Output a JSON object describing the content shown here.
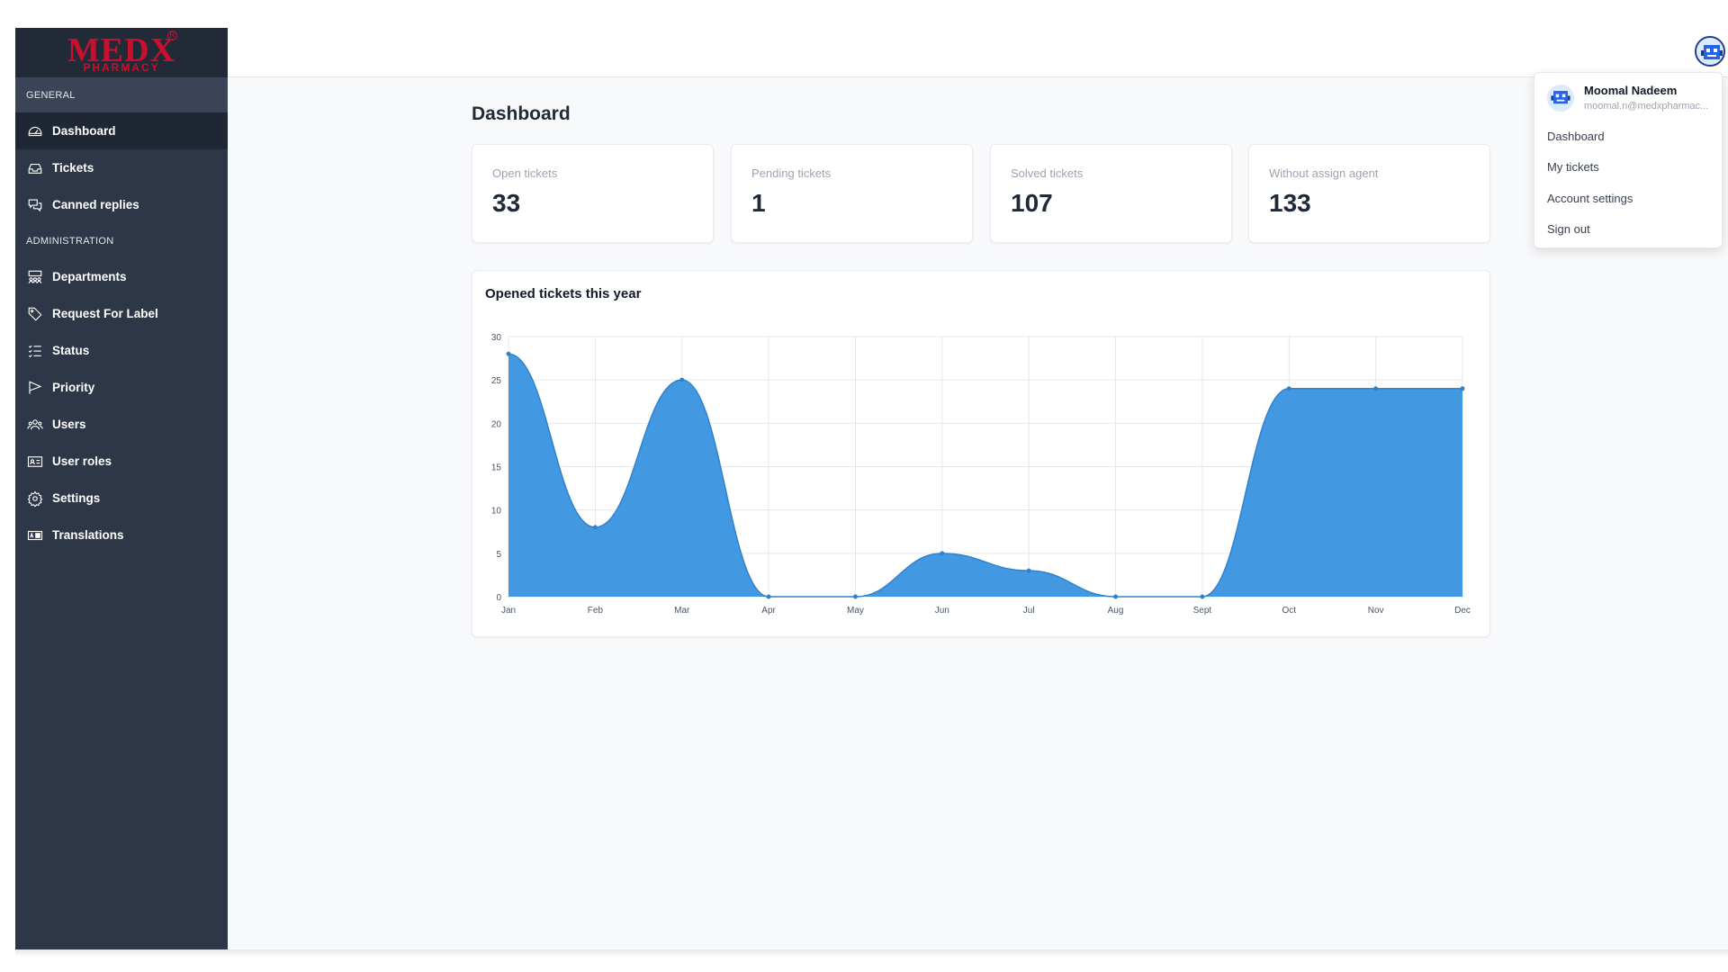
{
  "brand": {
    "logo_main": "MEDX",
    "logo_sub": "PHARMACY",
    "logo_reg": "R",
    "accent": "#c8102e"
  },
  "sidebar": {
    "sections": [
      {
        "title": "GENERAL",
        "items": [
          {
            "label": "Dashboard",
            "icon": "dashboard-gauge-icon",
            "active": true
          },
          {
            "label": "Tickets",
            "icon": "inbox-icon"
          },
          {
            "label": "Canned replies",
            "icon": "chat-bubbles-icon"
          }
        ]
      },
      {
        "title": "ADMINISTRATION",
        "items": [
          {
            "label": "Departments",
            "icon": "departments-icon"
          },
          {
            "label": "Request For Label",
            "icon": "tag-icon"
          },
          {
            "label": "Status",
            "icon": "list-check-icon"
          },
          {
            "label": "Priority",
            "icon": "flag-icon"
          },
          {
            "label": "Users",
            "icon": "users-icon"
          },
          {
            "label": "User roles",
            "icon": "id-card-icon"
          },
          {
            "label": "Settings",
            "icon": "gear-icon"
          },
          {
            "label": "Translations",
            "icon": "translate-icon"
          }
        ]
      }
    ]
  },
  "page": {
    "title": "Dashboard"
  },
  "stats": [
    {
      "label": "Open tickets",
      "value": "33"
    },
    {
      "label": "Pending tickets",
      "value": "1"
    },
    {
      "label": "Solved tickets",
      "value": "107"
    },
    {
      "label": "Without assign agent",
      "value": "133"
    }
  ],
  "user_menu": {
    "name": "Moomal Nadeem",
    "email": "moomal.n@medxpharmac...",
    "items": [
      "Dashboard",
      "My tickets",
      "Account settings",
      "Sign out"
    ]
  },
  "chart_data": {
    "type": "area",
    "title": "Opened tickets this year",
    "categories": [
      "Jan",
      "Feb",
      "Mar",
      "Apr",
      "May",
      "Jun",
      "Jul",
      "Aug",
      "Sept",
      "Oct",
      "Nov",
      "Dec"
    ],
    "values": [
      28,
      8,
      25,
      0,
      0,
      5,
      3,
      0,
      0,
      24,
      24,
      24
    ],
    "ylim": [
      0,
      30
    ],
    "yticks": [
      0,
      5,
      10,
      15,
      20,
      25,
      30
    ],
    "grid": true,
    "fill_color": "#4299e1",
    "line_color": "#3182ce"
  }
}
